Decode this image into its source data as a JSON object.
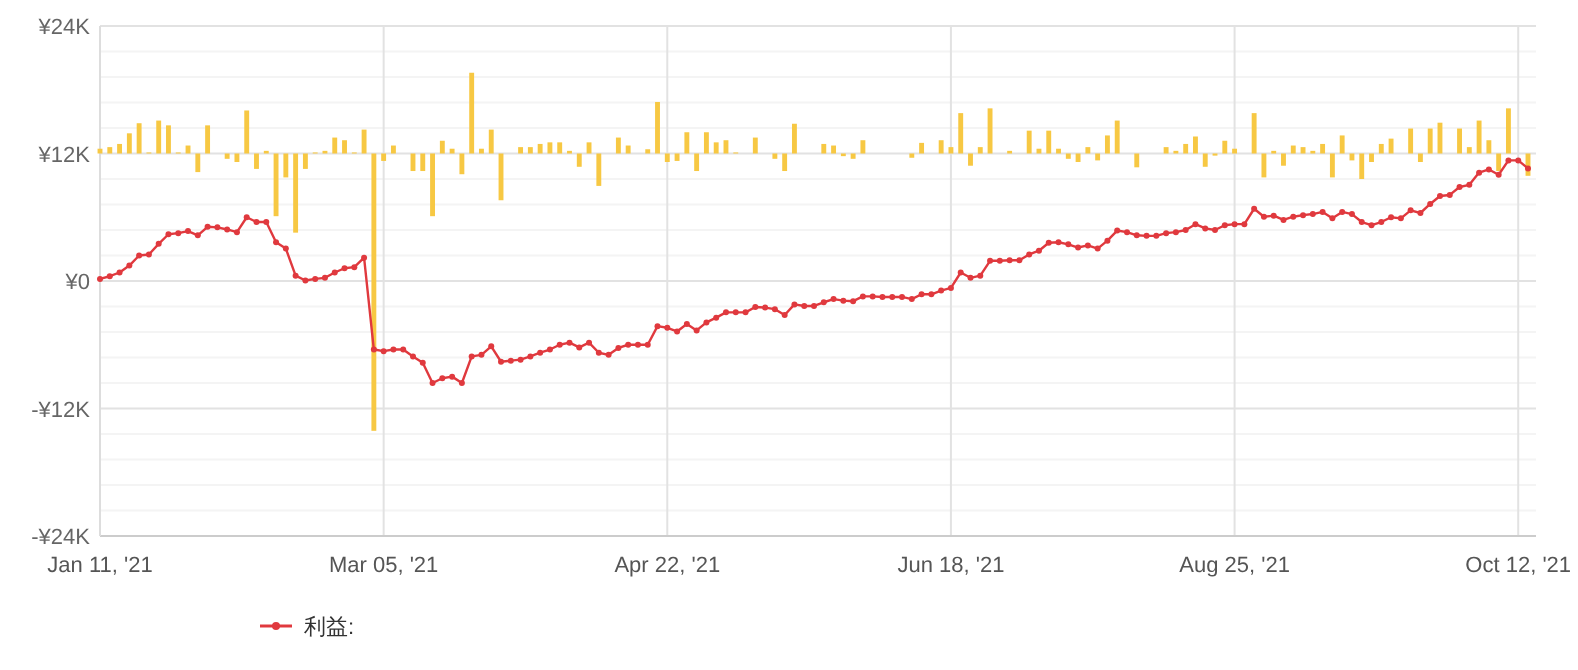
{
  "chart_data": {
    "type": "line",
    "categories": [
      "Jan 11, '21",
      null,
      null,
      null,
      null,
      null,
      null,
      null,
      null,
      null,
      null,
      null,
      null,
      null,
      null,
      null,
      null,
      null,
      null,
      null,
      null,
      null,
      null,
      null,
      null,
      null,
      null,
      null,
      null,
      "Mar 05, '21",
      null,
      null,
      null,
      null,
      null,
      null,
      null,
      null,
      null,
      null,
      null,
      null,
      null,
      null,
      null,
      null,
      null,
      null,
      null,
      null,
      null,
      null,
      null,
      null,
      null,
      null,
      null,
      null,
      "Apr 22, '21",
      null,
      null,
      null,
      null,
      null,
      null,
      null,
      null,
      null,
      null,
      null,
      null,
      null,
      null,
      null,
      null,
      null,
      null,
      null,
      null,
      null,
      null,
      null,
      null,
      null,
      null,
      null,
      null,
      "Jun 18, '21",
      null,
      null,
      null,
      null,
      null,
      null,
      null,
      null,
      null,
      null,
      null,
      null,
      null,
      null,
      null,
      null,
      null,
      null,
      null,
      null,
      null,
      null,
      null,
      null,
      null,
      null,
      null,
      null,
      "Aug 25, '21",
      null,
      null,
      null,
      null,
      null,
      null,
      null,
      null,
      null,
      null,
      null,
      null,
      null,
      null,
      null,
      null,
      null,
      null,
      null,
      null,
      null,
      null,
      null,
      null,
      null,
      null,
      null,
      null,
      "Oct 12, '21",
      null
    ],
    "series": [
      {
        "type": "bar",
        "color": "#f7c843",
        "base": [
          12000,
          12000,
          12000,
          12000,
          12000,
          12000,
          12000,
          12000,
          12000,
          12000,
          12000,
          12000,
          null,
          12000,
          12000,
          12000,
          12000,
          12000,
          12000,
          12000,
          12000,
          12000,
          12000,
          12000,
          12000,
          12000,
          12000,
          12000,
          12000,
          12000,
          12000,
          null,
          12000,
          12000,
          12000,
          12000,
          12000,
          12000,
          12000,
          12000,
          12000,
          12000,
          null,
          12000,
          12000,
          12000,
          12000,
          12000,
          12000,
          12000,
          12000,
          12000,
          null,
          12000,
          12000,
          null,
          12000,
          12000,
          12000,
          12000,
          12000,
          12000,
          12000,
          12000,
          12000,
          12000,
          null,
          12000,
          null,
          12000,
          12000,
          12000,
          null,
          null,
          12000,
          12000,
          12000,
          12000,
          12000,
          null,
          null,
          null,
          null,
          12000,
          12000,
          null,
          12000,
          12000,
          12000,
          12000,
          12000,
          12000,
          null,
          12000,
          null,
          12000,
          12000,
          12000,
          12000,
          12000,
          12000,
          12000,
          12000,
          12000,
          12000,
          null,
          12000,
          null,
          null,
          12000,
          12000,
          12000,
          12000,
          12000,
          12000,
          12000,
          12000,
          null,
          12000,
          12000,
          12000,
          12000,
          12000,
          12000,
          12000,
          12000,
          12000,
          12000,
          12000,
          12000,
          12000,
          12000,
          12000,
          null,
          12000,
          12000,
          12000,
          12000,
          null,
          12000,
          12000,
          12000,
          12000,
          12000,
          12000,
          null,
          12000
        ],
        "values": [
          450,
          600,
          900,
          1900,
          2850,
          100,
          3100,
          2650,
          100,
          750,
          -1750,
          2650,
          null,
          -500,
          -800,
          4050,
          -1450,
          250,
          -5900,
          -2250,
          -7450,
          -1450,
          100,
          250,
          1500,
          1250,
          100,
          2250,
          -26100,
          -700,
          750,
          null,
          -1650,
          -1650,
          -5900,
          1200,
          450,
          -1950,
          7600,
          450,
          2250,
          -4400,
          null,
          600,
          600,
          900,
          1050,
          1050,
          250,
          -1250,
          1050,
          -3050,
          null,
          1500,
          750,
          null,
          400,
          4850,
          -800,
          -700,
          2000,
          -1650,
          2000,
          1050,
          1250,
          100,
          null,
          1500,
          null,
          -500,
          -1650,
          2800,
          null,
          null,
          900,
          750,
          -250,
          -500,
          1250,
          null,
          null,
          null,
          null,
          -400,
          1000,
          null,
          1250,
          600,
          3800,
          -1150,
          600,
          4250,
          null,
          250,
          null,
          2150,
          450,
          2150,
          450,
          -500,
          -800,
          600,
          -650,
          1700,
          3100,
          null,
          -1300,
          null,
          null,
          600,
          250,
          900,
          1600,
          -1250,
          -200,
          1200,
          450,
          null,
          3800,
          -2250,
          250,
          -1150,
          750,
          600,
          250,
          900,
          -2250,
          1700,
          -650,
          -2400,
          -800,
          900,
          1400,
          null,
          2350,
          -800,
          2350,
          2900,
          null,
          2350,
          600,
          3100,
          1250,
          -1650,
          4250,
          null,
          -2100
        ]
      },
      {
        "name": "利益:",
        "color": "#e0393e",
        "values": [
          200,
          450,
          800,
          1450,
          2400,
          2500,
          3500,
          4400,
          4500,
          4700,
          4300,
          5100,
          5050,
          4850,
          4600,
          6000,
          5550,
          5550,
          3650,
          3050,
          500,
          50,
          200,
          300,
          800,
          1200,
          1300,
          2200,
          -6450,
          -6600,
          -6450,
          -6450,
          -7100,
          -7700,
          -9600,
          -9150,
          -9000,
          -9600,
          -7100,
          -6950,
          -6150,
          -7600,
          -7500,
          -7400,
          -7100,
          -6750,
          -6450,
          -6000,
          -5800,
          -6250,
          -5800,
          -6750,
          -6950,
          -6300,
          -6000,
          -6000,
          -6000,
          -4250,
          -4400,
          -4750,
          -4050,
          -4650,
          -3900,
          -3450,
          -2950,
          -2950,
          -2950,
          -2450,
          -2500,
          -2650,
          -3200,
          -2200,
          -2350,
          -2350,
          -2000,
          -1700,
          -1850,
          -1900,
          -1450,
          -1450,
          -1500,
          -1500,
          -1500,
          -1700,
          -1250,
          -1250,
          -900,
          -650,
          800,
          300,
          500,
          1900,
          1900,
          1950,
          1950,
          2500,
          2850,
          3600,
          3650,
          3450,
          3150,
          3350,
          3050,
          3800,
          4750,
          4600,
          4300,
          4250,
          4250,
          4500,
          4600,
          4800,
          5350,
          4950,
          4800,
          5250,
          5350,
          5350,
          6800,
          6050,
          6150,
          5750,
          6050,
          6200,
          6300,
          6500,
          5900,
          6500,
          6300,
          5550,
          5250,
          5550,
          6000,
          5900,
          6650,
          6400,
          7250,
          8000,
          8100,
          8850,
          9050,
          10200,
          10500,
          10000,
          11350,
          11350,
          10600
        ]
      }
    ],
    "ylim": [
      -24000,
      24000
    ],
    "yticks": [
      {
        "value": -24000,
        "label": "-¥24K"
      },
      {
        "value": -21600,
        "label": null
      },
      {
        "value": -19200,
        "label": null
      },
      {
        "value": -16800,
        "label": null
      },
      {
        "value": -14400,
        "label": null
      },
      {
        "value": -12000,
        "label": "-¥12K"
      },
      {
        "value": -9600,
        "label": null
      },
      {
        "value": -7200,
        "label": null
      },
      {
        "value": -4800,
        "label": null
      },
      {
        "value": -2400,
        "label": null
      },
      {
        "value": 0,
        "label": "¥0"
      },
      {
        "value": 2400,
        "label": null
      },
      {
        "value": 4800,
        "label": null
      },
      {
        "value": 7200,
        "label": null
      },
      {
        "value": 9600,
        "label": null
      },
      {
        "value": 12000,
        "label": "¥12K"
      },
      {
        "value": 14400,
        "label": null
      },
      {
        "value": 16800,
        "label": null
      },
      {
        "value": 19200,
        "label": null
      },
      {
        "value": 21600,
        "label": null
      },
      {
        "value": 24000,
        "label": "¥24K"
      }
    ],
    "grid": true,
    "legend": "bottom",
    "marker": "circle"
  }
}
